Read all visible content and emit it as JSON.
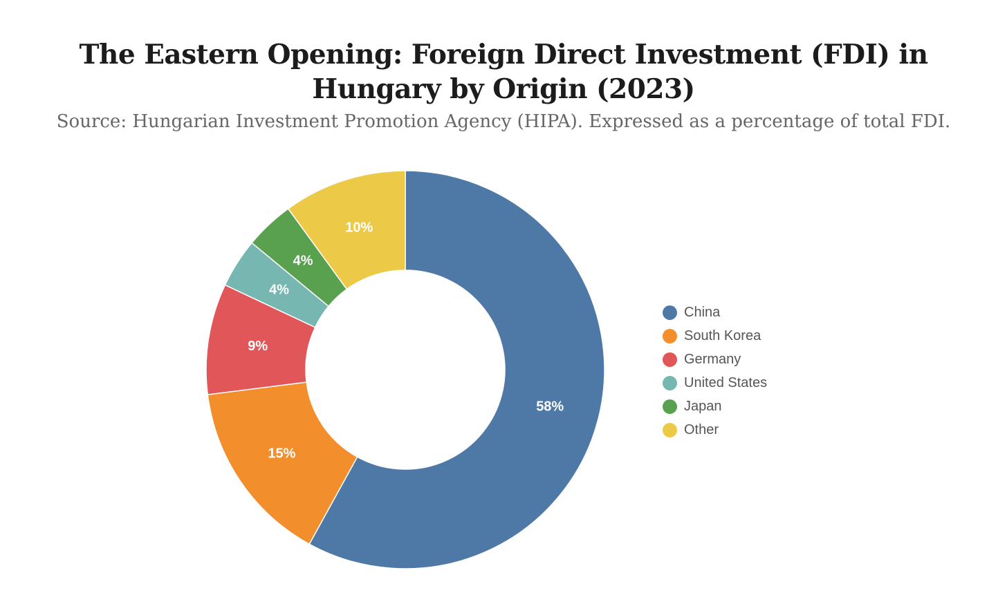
{
  "chart_data": {
    "type": "pie",
    "variant": "donut",
    "title": "The Eastern Opening: Foreign Direct Investment (FDI) in Hungary by Origin (2023)",
    "subtitle": "Source: Hungarian Investment Promotion Agency (HIPA). Expressed as a percentage of total FDI.",
    "unit": "%",
    "legend_position": "right",
    "slices": [
      {
        "label": "China",
        "value": 58,
        "display": "58%",
        "color": "#4e79a7"
      },
      {
        "label": "South Korea",
        "value": 15,
        "display": "15%",
        "color": "#f28e2b"
      },
      {
        "label": "Germany",
        "value": 9,
        "display": "9%",
        "color": "#e15759"
      },
      {
        "label": "United States",
        "value": 4,
        "display": "4%",
        "color": "#76b7b2"
      },
      {
        "label": "Japan",
        "value": 4,
        "display": "4%",
        "color": "#59a14f"
      },
      {
        "label": "Other",
        "value": 10,
        "display": "10%",
        "color": "#edc948"
      }
    ]
  }
}
